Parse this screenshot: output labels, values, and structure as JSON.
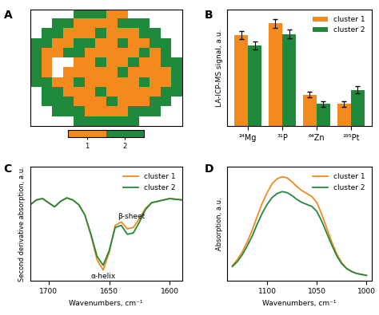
{
  "chart_data": [
    {
      "type": "heatmap",
      "panel": "A",
      "tick_labels": false,
      "colors": [
        "#f28a1e",
        "#1f8a3c"
      ],
      "cells": [
        [
          null,
          null,
          null,
          null,
          2,
          2,
          2,
          1,
          1,
          null,
          null,
          null,
          null,
          null
        ],
        [
          null,
          null,
          2,
          2,
          1,
          1,
          1,
          1,
          2,
          2,
          2,
          null,
          null,
          null
        ],
        [
          null,
          2,
          2,
          1,
          1,
          1,
          2,
          1,
          1,
          1,
          2,
          2,
          null,
          null
        ],
        [
          2,
          2,
          1,
          1,
          2,
          2,
          1,
          1,
          2,
          1,
          1,
          2,
          2,
          null
        ],
        [
          2,
          1,
          1,
          2,
          2,
          1,
          1,
          1,
          1,
          1,
          2,
          1,
          2,
          null
        ],
        [
          2,
          1,
          null,
          null,
          1,
          1,
          2,
          1,
          1,
          2,
          1,
          1,
          2,
          2
        ],
        [
          2,
          1,
          null,
          1,
          1,
          1,
          1,
          1,
          2,
          1,
          1,
          1,
          1,
          2
        ],
        [
          2,
          2,
          1,
          1,
          2,
          1,
          1,
          1,
          1,
          1,
          2,
          1,
          1,
          2
        ],
        [
          null,
          2,
          2,
          1,
          1,
          1,
          2,
          1,
          1,
          1,
          1,
          1,
          2,
          2
        ],
        [
          null,
          2,
          2,
          2,
          1,
          1,
          1,
          2,
          1,
          1,
          1,
          2,
          2,
          null
        ],
        [
          null,
          null,
          2,
          2,
          2,
          1,
          1,
          1,
          1,
          2,
          2,
          2,
          null,
          null
        ],
        [
          null,
          null,
          null,
          null,
          2,
          2,
          2,
          2,
          2,
          2,
          null,
          null,
          null,
          null
        ]
      ],
      "colorbar_range": [
        0.5,
        2.5
      ],
      "colorbar_ticks": [
        1,
        2
      ]
    },
    {
      "type": "bar",
      "panel": "B",
      "y_label": "LA-ICP-MS signal, a.u.",
      "categories": [
        "²⁴Mg",
        "³¹P",
        "⁶⁴Zn",
        "¹⁹⁵Pt"
      ],
      "ylim": [
        0,
        10
      ],
      "tick_labels": "x",
      "legend": "upper right",
      "series": [
        {
          "name": "cluster 1",
          "color": "#f28a1e",
          "values": [
            7.8,
            8.8,
            2.7,
            1.9
          ],
          "errors": [
            0.35,
            0.35,
            0.25,
            0.25
          ]
        },
        {
          "name": "cluster 2",
          "color": "#1f8a3c",
          "values": [
            6.9,
            7.9,
            1.9,
            3.1
          ],
          "errors": [
            0.35,
            0.35,
            0.25,
            0.3
          ]
        }
      ]
    },
    {
      "type": "line",
      "panel": "C",
      "x_label": "Wavenumbers, cm⁻¹",
      "y_label": "Second derivative absorption, a.u.",
      "xlim": [
        1715,
        1590
      ],
      "xticks": [
        1700,
        1650,
        1600
      ],
      "ylim": [
        -1.05,
        0.6
      ],
      "tick_labels": "x",
      "legend": "upper right",
      "annotations": [
        {
          "text": "α-helix",
          "x": 1655,
          "y": -0.99
        },
        {
          "text": "β-sheet",
          "x": 1632,
          "y": -0.12
        }
      ],
      "x": [
        1715,
        1710,
        1705,
        1700,
        1695,
        1690,
        1685,
        1680,
        1675,
        1670,
        1665,
        1660,
        1655,
        1650,
        1645,
        1640,
        1635,
        1630,
        1625,
        1620,
        1615,
        1610,
        1605,
        1600,
        1595,
        1590
      ],
      "series": [
        {
          "name": "cluster 1",
          "color": "#f28a1e",
          "values": [
            0.05,
            0.12,
            0.14,
            0.08,
            0.02,
            0.1,
            0.15,
            0.12,
            0.05,
            -0.1,
            -0.4,
            -0.75,
            -0.9,
            -0.65,
            -0.25,
            -0.2,
            -0.3,
            -0.28,
            -0.15,
            0.0,
            0.08,
            0.1,
            0.12,
            0.14,
            0.13,
            0.12
          ]
        },
        {
          "name": "cluster 2",
          "color": "#1f8a3c",
          "values": [
            0.05,
            0.12,
            0.14,
            0.08,
            0.02,
            0.1,
            0.15,
            0.12,
            0.05,
            -0.1,
            -0.38,
            -0.7,
            -0.83,
            -0.62,
            -0.28,
            -0.25,
            -0.38,
            -0.36,
            -0.2,
            -0.02,
            0.08,
            0.1,
            0.12,
            0.14,
            0.13,
            0.12
          ]
        }
      ]
    },
    {
      "type": "line",
      "panel": "D",
      "x_label": "Wavenumbers, cm⁻¹",
      "y_label": "Absorption, a.u.",
      "xlim": [
        1140,
        995
      ],
      "xticks": [
        1100,
        1050,
        1000
      ],
      "ylim": [
        -0.05,
        1.1
      ],
      "tick_labels": "x",
      "legend": "upper right",
      "x": [
        1135,
        1130,
        1125,
        1120,
        1115,
        1110,
        1105,
        1100,
        1095,
        1090,
        1085,
        1080,
        1075,
        1070,
        1065,
        1060,
        1055,
        1050,
        1045,
        1040,
        1035,
        1030,
        1025,
        1020,
        1015,
        1010,
        1005,
        1000
      ],
      "series": [
        {
          "name": "cluster 1",
          "color": "#f28a1e",
          "values": [
            0.1,
            0.16,
            0.24,
            0.34,
            0.46,
            0.6,
            0.73,
            0.84,
            0.93,
            0.98,
            1.0,
            0.99,
            0.95,
            0.9,
            0.86,
            0.83,
            0.8,
            0.74,
            0.62,
            0.48,
            0.34,
            0.22,
            0.13,
            0.07,
            0.04,
            0.02,
            0.01,
            0.0
          ]
        },
        {
          "name": "cluster 2",
          "color": "#1f8a3c",
          "values": [
            0.09,
            0.14,
            0.21,
            0.3,
            0.4,
            0.52,
            0.63,
            0.72,
            0.79,
            0.83,
            0.85,
            0.84,
            0.81,
            0.77,
            0.74,
            0.72,
            0.7,
            0.65,
            0.55,
            0.43,
            0.31,
            0.2,
            0.12,
            0.07,
            0.04,
            0.02,
            0.01,
            0.0
          ]
        }
      ]
    }
  ]
}
